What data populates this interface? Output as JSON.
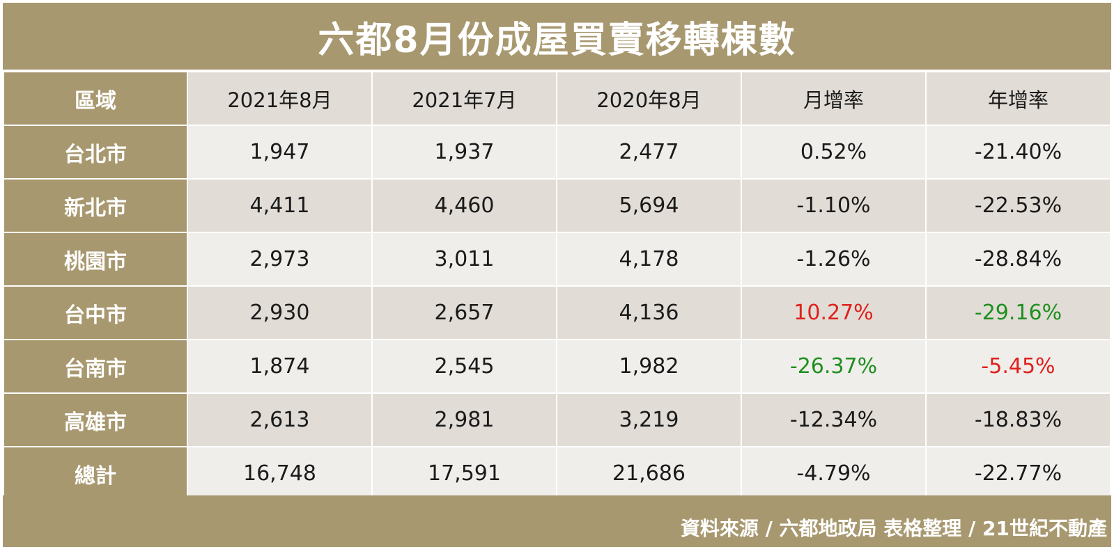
{
  "title": "六都8月份成屋買賣移轉棟數",
  "header": {
    "region": "區域",
    "columns": [
      "2021年8月",
      "2021年7月",
      "2020年8月",
      "月增率",
      "年增率"
    ]
  },
  "rows": [
    {
      "region": "台北市",
      "values": [
        "1,947",
        "1,937",
        "2,477",
        "0.52%",
        "-21.40%"
      ]
    },
    {
      "region": "新北市",
      "values": [
        "4,411",
        "4,460",
        "5,694",
        "-1.10%",
        "-22.53%"
      ]
    },
    {
      "region": "桃園市",
      "values": [
        "2,973",
        "3,011",
        "4,178",
        "-1.26%",
        "-28.84%"
      ]
    },
    {
      "region": "台中市",
      "values": [
        "2,930",
        "2,657",
        "4,136",
        "10.27%",
        "-29.16%"
      ]
    },
    {
      "region": "台南市",
      "values": [
        "1,874",
        "2,545",
        "1,982",
        "-26.37%",
        "-5.45%"
      ]
    },
    {
      "region": "高雄市",
      "values": [
        "2,613",
        "2,981",
        "3,219",
        "-12.34%",
        "-18.83%"
      ]
    },
    {
      "region": "總計",
      "values": [
        "16,748",
        "17,591",
        "21,686",
        "-4.79%",
        "-22.77%"
      ]
    }
  ],
  "footer": "資料來源 / 六都地政局 表格整理 / 21世紀不動產",
  "colors": {
    "header_bg": "#a8986f",
    "highlight_red": "#e0201c",
    "highlight_green": "#1f8f1f"
  }
}
